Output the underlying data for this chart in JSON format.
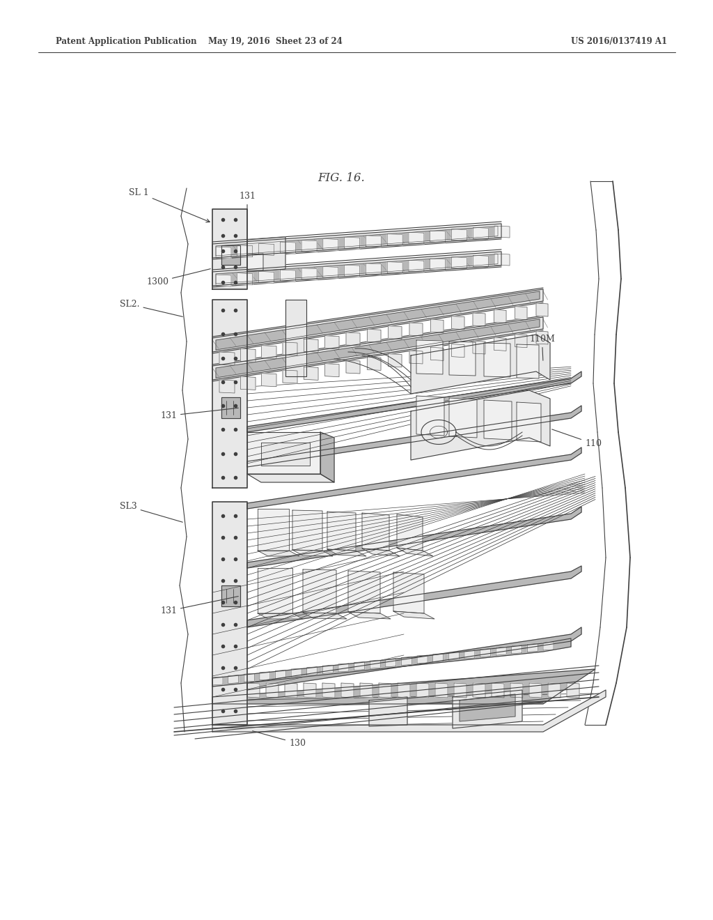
{
  "header_left": "Patent Application Publication",
  "header_mid": "May 19, 2016  Sheet 23 of 24",
  "header_right": "US 2016/0137419 A1",
  "figure_label": "FIG. 16.",
  "bg_color": "#ffffff",
  "line_color": "#404040",
  "gray1": "#d0d0d0",
  "gray2": "#b8b8b8",
  "gray3": "#e8e8e8",
  "gray4": "#f0f0f0",
  "gray_dark": "#888888"
}
